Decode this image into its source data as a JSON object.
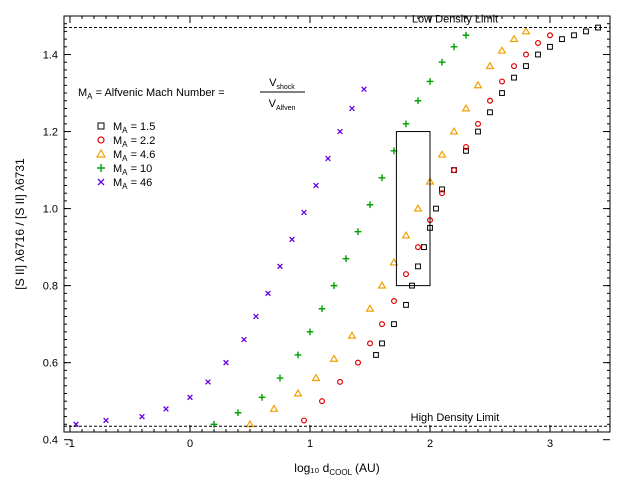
{
  "chart_data": {
    "type": "scatter",
    "title": "",
    "xlabel": "log₁₀ d",
    "xlabel_sub": "COOL",
    "xlabel_unit": "(AU)",
    "ylabel": "[S II] λ6716 / [S II] λ6731",
    "xlim": [
      -1.05,
      3.5
    ],
    "ylim": [
      0.42,
      1.5
    ],
    "xticks": [
      -1,
      0,
      1,
      2,
      3
    ],
    "yticks": [
      0.4,
      0.6,
      0.8,
      1.0,
      1.2,
      1.4
    ],
    "xtick_labels": [
      "-1",
      "0",
      "1",
      "2",
      "3"
    ],
    "ytick_labels": [
      "0.4",
      "0.6",
      "0.8",
      "1.0",
      "1.2",
      "1.4"
    ],
    "grid": false,
    "legend_placement": "upper-left",
    "reference_lines": [
      {
        "y": 1.47,
        "label": "Low Density Limit",
        "style": "dashed"
      },
      {
        "y": 0.435,
        "label": "High Density Limit",
        "style": "dashed"
      }
    ],
    "annotation": {
      "lhs": "M",
      "lhs_sub": "A",
      "text": " = Alfvenic Mach Number = ",
      "numerator": "V",
      "numerator_sub": "shock",
      "denominator": "V",
      "denominator_sub": "Alfven"
    },
    "box": {
      "x0": 1.72,
      "x1": 2.0,
      "y0": 0.8,
      "y1": 1.2
    },
    "series": [
      {
        "name": "1.5",
        "marker": "square",
        "color": "#000000",
        "points": [
          [
            1.55,
            0.62
          ],
          [
            1.6,
            0.65
          ],
          [
            1.7,
            0.7
          ],
          [
            1.8,
            0.75
          ],
          [
            1.85,
            0.8
          ],
          [
            1.9,
            0.85
          ],
          [
            1.95,
            0.9
          ],
          [
            2.0,
            0.95
          ],
          [
            2.05,
            1.0
          ],
          [
            2.1,
            1.05
          ],
          [
            2.2,
            1.1
          ],
          [
            2.3,
            1.15
          ],
          [
            2.4,
            1.2
          ],
          [
            2.5,
            1.25
          ],
          [
            2.6,
            1.3
          ],
          [
            2.7,
            1.34
          ],
          [
            2.8,
            1.37
          ],
          [
            2.9,
            1.4
          ],
          [
            3.0,
            1.42
          ],
          [
            3.1,
            1.44
          ],
          [
            3.2,
            1.45
          ],
          [
            3.3,
            1.46
          ],
          [
            3.4,
            1.47
          ]
        ]
      },
      {
        "name": "2.2",
        "marker": "circle",
        "color": "#e00000",
        "points": [
          [
            0.95,
            0.45
          ],
          [
            1.1,
            0.5
          ],
          [
            1.25,
            0.55
          ],
          [
            1.4,
            0.6
          ],
          [
            1.5,
            0.65
          ],
          [
            1.6,
            0.7
          ],
          [
            1.7,
            0.76
          ],
          [
            1.8,
            0.83
          ],
          [
            1.9,
            0.9
          ],
          [
            2.0,
            0.97
          ],
          [
            2.1,
            1.04
          ],
          [
            2.2,
            1.1
          ],
          [
            2.3,
            1.16
          ],
          [
            2.4,
            1.22
          ],
          [
            2.5,
            1.28
          ],
          [
            2.6,
            1.33
          ],
          [
            2.7,
            1.37
          ],
          [
            2.8,
            1.4
          ],
          [
            2.9,
            1.43
          ],
          [
            3.0,
            1.45
          ]
        ]
      },
      {
        "name": "4.6",
        "marker": "triangle",
        "color": "#f0a000",
        "points": [
          [
            0.5,
            0.44
          ],
          [
            0.7,
            0.48
          ],
          [
            0.9,
            0.52
          ],
          [
            1.05,
            0.56
          ],
          [
            1.2,
            0.61
          ],
          [
            1.35,
            0.67
          ],
          [
            1.5,
            0.74
          ],
          [
            1.6,
            0.8
          ],
          [
            1.7,
            0.86
          ],
          [
            1.8,
            0.93
          ],
          [
            1.9,
            1.0
          ],
          [
            2.0,
            1.07
          ],
          [
            2.1,
            1.14
          ],
          [
            2.2,
            1.2
          ],
          [
            2.3,
            1.26
          ],
          [
            2.4,
            1.32
          ],
          [
            2.5,
            1.37
          ],
          [
            2.6,
            1.41
          ],
          [
            2.7,
            1.44
          ],
          [
            2.8,
            1.46
          ]
        ]
      },
      {
        "name": "10",
        "marker": "plus",
        "color": "#00a000",
        "points": [
          [
            0.2,
            0.44
          ],
          [
            0.4,
            0.47
          ],
          [
            0.6,
            0.51
          ],
          [
            0.75,
            0.56
          ],
          [
            0.9,
            0.62
          ],
          [
            1.0,
            0.68
          ],
          [
            1.1,
            0.74
          ],
          [
            1.2,
            0.8
          ],
          [
            1.3,
            0.87
          ],
          [
            1.4,
            0.94
          ],
          [
            1.5,
            1.01
          ],
          [
            1.6,
            1.08
          ],
          [
            1.7,
            1.15
          ],
          [
            1.8,
            1.22
          ],
          [
            1.9,
            1.28
          ],
          [
            2.0,
            1.33
          ],
          [
            2.1,
            1.38
          ],
          [
            2.2,
            1.42
          ],
          [
            2.3,
            1.45
          ]
        ]
      },
      {
        "name": "46",
        "marker": "x",
        "color": "#6a00e8",
        "points": [
          [
            -0.95,
            0.44
          ],
          [
            -0.7,
            0.45
          ],
          [
            -0.4,
            0.46
          ],
          [
            -0.2,
            0.48
          ],
          [
            0.0,
            0.51
          ],
          [
            0.15,
            0.55
          ],
          [
            0.3,
            0.6
          ],
          [
            0.45,
            0.66
          ],
          [
            0.55,
            0.72
          ],
          [
            0.65,
            0.78
          ],
          [
            0.75,
            0.85
          ],
          [
            0.85,
            0.92
          ],
          [
            0.95,
            0.99
          ],
          [
            1.05,
            1.06
          ],
          [
            1.15,
            1.13
          ],
          [
            1.25,
            1.2
          ],
          [
            1.35,
            1.26
          ],
          [
            1.45,
            1.31
          ]
        ]
      }
    ]
  }
}
